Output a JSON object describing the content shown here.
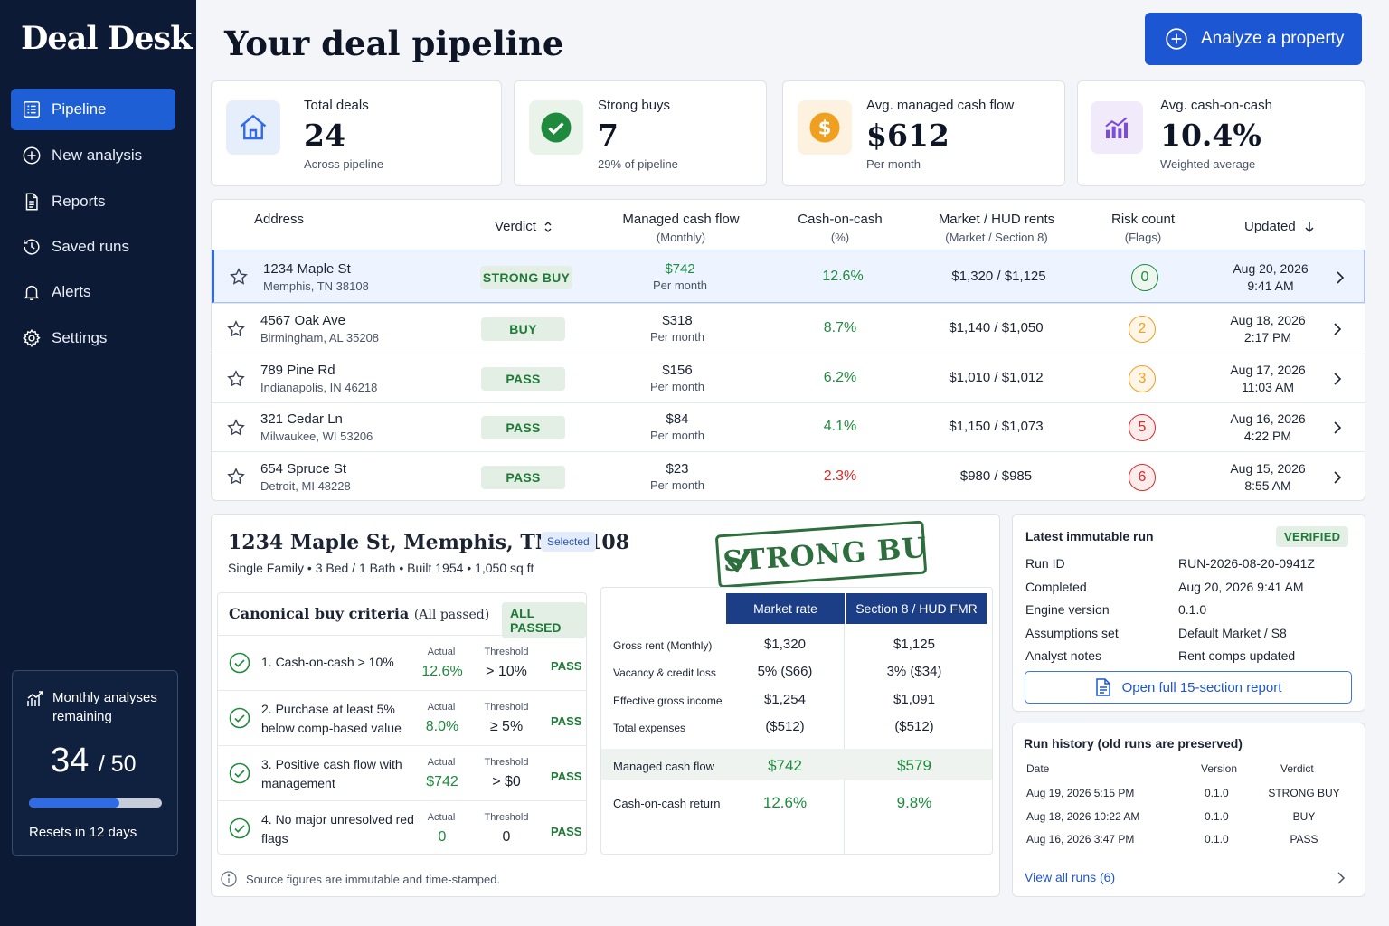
{
  "sidebar": {
    "brand": "Deal Desk",
    "nav": [
      {
        "label": "Pipeline",
        "icon": "pipeline-icon",
        "active": true
      },
      {
        "label": "New analysis",
        "icon": "plus-circle-icon"
      },
      {
        "label": "Reports",
        "icon": "document-icon"
      },
      {
        "label": "Saved runs",
        "icon": "history-clock-icon"
      },
      {
        "label": "Alerts",
        "icon": "bell-icon"
      },
      {
        "label": "Settings",
        "icon": "gear-icon"
      }
    ],
    "quota": {
      "title": "Monthly analyses remaining",
      "used": "34",
      "total": "/ 50",
      "fraction": 0.68,
      "reset": "Resets in 12 days"
    }
  },
  "header": {
    "title": "Your deal pipeline",
    "analyze_label": "Analyze a property"
  },
  "stats": [
    {
      "label": "Total deals",
      "value": "24",
      "sub": "Across pipeline",
      "icon": "house-icon",
      "color": "#2f6be5"
    },
    {
      "label": "Strong buys",
      "value": "7",
      "sub": "29% of pipeline",
      "icon": "check-circle-icon",
      "color": "#1f8a3e"
    },
    {
      "label": "Avg. managed cash flow",
      "value": "$612",
      "sub": "Per month",
      "icon": "dollar-coin-icon",
      "color": "#f0a020"
    },
    {
      "label": "Avg. cash-on-cash",
      "value": "10.4%",
      "sub": "Weighted average",
      "icon": "bar-chart-icon",
      "color": "#7c4ddc"
    }
  ],
  "table": {
    "headers": {
      "address": "Address",
      "verdict": "Verdict",
      "cashflow": "Managed cash flow",
      "cashflow_sub": "(Monthly)",
      "coc": "Cash-on-cash",
      "coc_sub": "(%)",
      "rents": "Market / HUD rents",
      "rents_sub": "(Market / Section 8)",
      "risk": "Risk count",
      "risk_sub": "(Flags)",
      "updated": "Updated"
    },
    "rows": [
      {
        "address": "1234 Maple St",
        "city": "Memphis, TN 38108",
        "verdict": "STRONG BUY",
        "cashflow": "$742",
        "cashflow_sub": "Per month",
        "coc": "12.6%",
        "rents": "$1,320 / $1,125",
        "flags": "0",
        "date": "Aug 20, 2026",
        "time": "9:41 AM"
      },
      {
        "address": "4567 Oak Ave",
        "city": "Birmingham, AL 35208",
        "verdict": "BUY",
        "cashflow": "$318",
        "cashflow_sub": "Per month",
        "coc": "8.7%",
        "rents": "$1,140 / $1,050",
        "flags": "2",
        "date": "Aug 18, 2026",
        "time": "2:17 PM"
      },
      {
        "address": "789 Pine Rd",
        "city": "Indianapolis, IN 46218",
        "verdict": "PASS",
        "cashflow": "$156",
        "cashflow_sub": "Per month",
        "coc": "6.2%",
        "rents": "$1,010 / $1,012",
        "flags": "3",
        "date": "Aug 17, 2026",
        "time": "11:03 AM"
      },
      {
        "address": "321 Cedar Ln",
        "city": "Milwaukee, WI 53206",
        "verdict": "PASS",
        "cashflow": "$84",
        "cashflow_sub": "Per month",
        "coc": "4.1%",
        "rents": "$1,150 / $1,073",
        "flags": "5",
        "date": "Aug 16, 2026",
        "time": "4:22 PM"
      },
      {
        "address": "654 Spruce St",
        "city": "Detroit, MI 48228",
        "verdict": "PASS",
        "cashflow": "$23",
        "cashflow_sub": "Per month",
        "coc": "2.3%",
        "rents": "$980 / $985",
        "flags": "6",
        "date": "Aug 15, 2026",
        "time": "8:55 AM"
      }
    ]
  },
  "detail": {
    "title": "1234 Maple St, Memphis, TN 38108",
    "selected_badge": "Selected",
    "meta": "Single Family  •  3 Bed / 1 Bath  •  Built 1954  •  1,050 sq ft",
    "stamp": "STRONG BUY",
    "criteria": {
      "title": "Canonical buy criteria",
      "subtitle": "(All passed)",
      "badge": "ALL PASSED",
      "actual_label": "Actual",
      "threshold_label": "Threshold",
      "items": [
        {
          "text": "1. Cash-on-cash > 10%",
          "actual": "12.6%",
          "threshold": "> 10%",
          "result": "PASS"
        },
        {
          "text": "2. Purchase at least 5% below comp-based value",
          "actual": "8.0%",
          "threshold": "≥ 5%",
          "result": "PASS"
        },
        {
          "text": "3. Positive cash flow with management",
          "actual": "$742",
          "threshold": "> $0",
          "result": "PASS"
        },
        {
          "text": "4. No major unresolved red flags",
          "actual": "0",
          "threshold": "0",
          "result": "PASS"
        }
      ]
    },
    "rent_compare": {
      "col_market": "Market rate",
      "col_section8": "Section 8 / HUD FMR",
      "rows": [
        {
          "label": "Gross rent (Monthly)",
          "market": "$1,320",
          "s8": "$1,125"
        },
        {
          "label": "Vacancy & credit loss",
          "market": "5% ($66)",
          "s8": "3% ($34)"
        },
        {
          "label": "Effective gross income",
          "market": "$1,254",
          "s8": "$1,091"
        },
        {
          "label": "Total expenses",
          "market": "($512)",
          "s8": "($512)"
        },
        {
          "label": "Managed cash flow",
          "market": "$742",
          "s8": "$579"
        },
        {
          "label": "Cash-on-cash return",
          "market": "12.6%",
          "s8": "9.8%"
        }
      ]
    },
    "source_note": "Source figures are immutable and time-stamped."
  },
  "run": {
    "title": "Latest immutable run",
    "badge": "VERIFIED",
    "fields": [
      {
        "k": "Run ID",
        "v": "RUN-2026-08-20-0941Z"
      },
      {
        "k": "Completed",
        "v": "Aug 20, 2026 9:41 AM"
      },
      {
        "k": "Engine version",
        "v": "0.1.0"
      },
      {
        "k": "Assumptions set",
        "v": "Default Market / S8"
      },
      {
        "k": "Analyst notes",
        "v": "Rent comps updated"
      }
    ],
    "report_btn": "Open full 15-section report"
  },
  "history": {
    "title": "Run history (old runs are preserved)",
    "headers": {
      "date": "Date",
      "version": "Version",
      "verdict": "Verdict"
    },
    "rows": [
      {
        "date": "Aug 19, 2026 5:15 PM",
        "version": "0.1.0",
        "verdict": "STRONG BUY"
      },
      {
        "date": "Aug 18, 2026 10:22 AM",
        "version": "0.1.0",
        "verdict": "BUY"
      },
      {
        "date": "Aug 16, 2026 3:47 PM",
        "version": "0.1.0",
        "verdict": "PASS"
      }
    ],
    "view_all": "View all runs (6)"
  }
}
